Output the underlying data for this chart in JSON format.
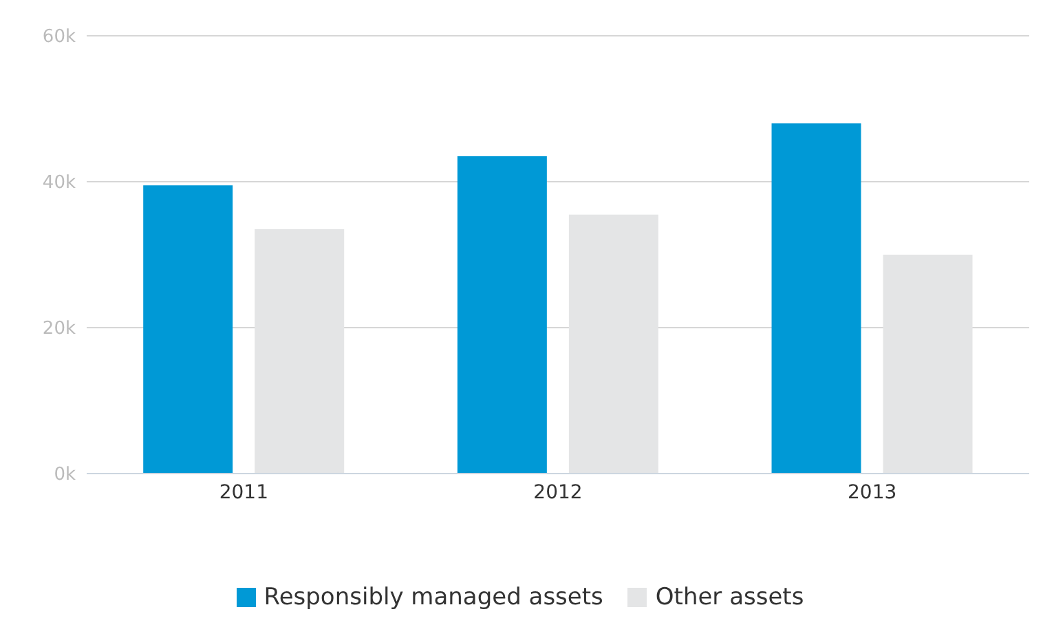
{
  "chart_data": {
    "type": "bar",
    "categories": [
      "2011",
      "2012",
      "2013"
    ],
    "series": [
      {
        "name": "Responsibly managed assets",
        "color": "#0099d6",
        "values": [
          39500,
          43500,
          48000
        ]
      },
      {
        "name": "Other assets",
        "color": "#e4e5e6",
        "values": [
          33500,
          35500,
          30000
        ]
      }
    ],
    "ylim": [
      0,
      60000
    ],
    "yticks": [
      {
        "value": 0,
        "label": "0k"
      },
      {
        "value": 20000,
        "label": "20k"
      },
      {
        "value": 40000,
        "label": "40k"
      },
      {
        "value": 60000,
        "label": "60k"
      }
    ],
    "grid": "y",
    "legend": "bottom"
  }
}
